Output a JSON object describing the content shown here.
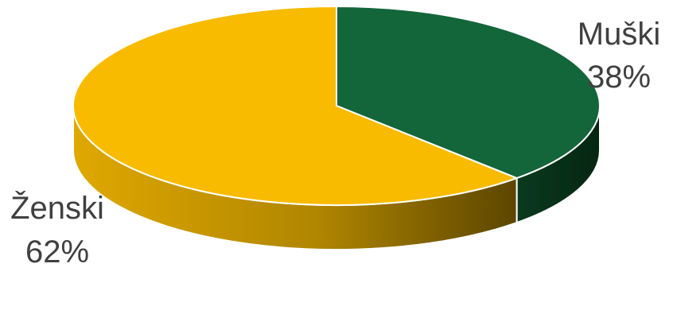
{
  "chart_data": {
    "type": "pie",
    "style": "3d",
    "categories": [
      "Muški",
      "Ženski"
    ],
    "values": [
      38,
      62
    ],
    "labels": [
      {
        "name": "Muški",
        "value": "38%"
      },
      {
        "name": "Ženski",
        "value": "62%"
      }
    ],
    "colors": [
      "#13663a",
      "#f8bb00"
    ],
    "side_colors": [
      "#0c3d22",
      "#c79600"
    ],
    "start": "12 o'clock, clockwise",
    "legend": "none"
  }
}
